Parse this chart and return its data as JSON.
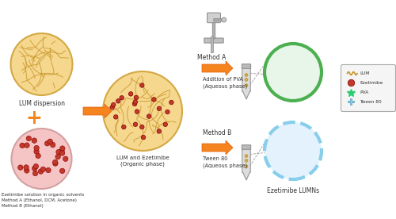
{
  "bg_color": "#ffffff",
  "lum_circle_color": "#F5D78E",
  "lum_circle_edge": "#D4A843",
  "ezetimibe_circle_color": "#F5C5C5",
  "ezetimibe_dot_color": "#C0392B",
  "organic_circle_color": "#F5D78E",
  "organic_circle_edge": "#D4A843",
  "method_a_ring_color": "#4CAF50",
  "method_b_ring_color": "#87CEEB",
  "arrow_color": "#F5841F",
  "arrow_edge": "#E06010",
  "plus_color": "#F5841F",
  "text_color": "#333333",
  "legend_bg": "#F5F5F5",
  "legend_edge": "#AAAAAA",
  "fiber_color": "#C8962A",
  "labels": {
    "lum": "LUM dispersion",
    "ezetimibe": "Ezetimibe solution in organic solvents\nMethod A (Ethanol, DCM, Acetone)\nMethod B (Ethanol)",
    "organic": "LUM and Ezetimibe\n(Organic phase)",
    "method_a": "Method A",
    "method_b": "Method B",
    "addition_pva": "Addition of PVA\n(Aqueous phase)",
    "tween80": "Tween 80\n(Aqueous phase)",
    "product": "Ezetimibe LUMNs",
    "legend_lum": "LUM",
    "legend_ezetimibe": "Ezetimibe",
    "legend_pva": "PVA",
    "legend_tween": "Tween 80"
  }
}
